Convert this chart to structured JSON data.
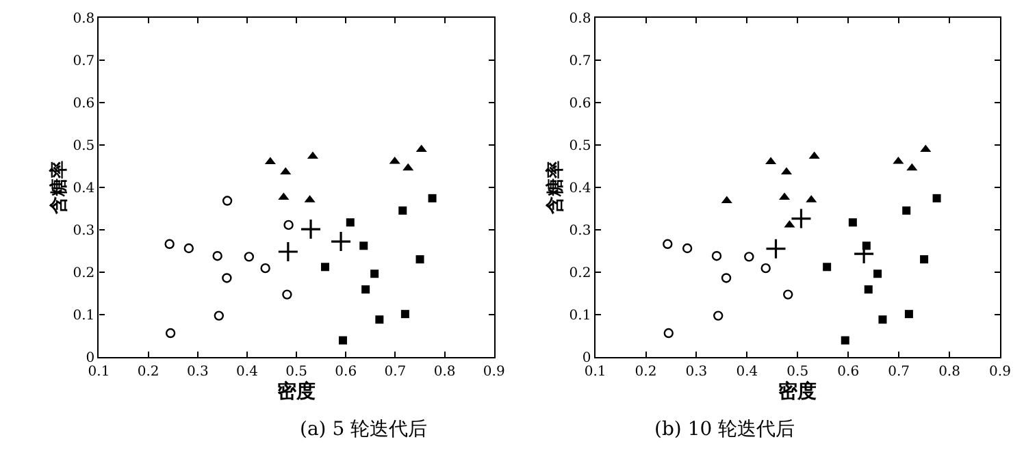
{
  "chart_data": [
    {
      "type": "scatter",
      "title": "(a) 5 轮迭代后",
      "xlabel": "密度",
      "ylabel": "含糖率",
      "xlim": [
        0.1,
        0.9
      ],
      "xticks": [
        0.1,
        0.2,
        0.3,
        0.4,
        0.5,
        0.6,
        0.7,
        0.8,
        0.9
      ],
      "ylim": [
        0,
        0.8
      ],
      "yticks": [
        0,
        0.1,
        0.2,
        0.3,
        0.4,
        0.5,
        0.6,
        0.7,
        0.8
      ],
      "series": [
        {
          "color": "#000000",
          "marker": "circle",
          "x": [
            0.243,
            0.282,
            0.34,
            0.404,
            0.437,
            0.359,
            0.36,
            0.484,
            0.481,
            0.343,
            0.245
          ],
          "values": [
            0.267,
            0.257,
            0.239,
            0.237,
            0.21,
            0.187,
            0.369,
            0.312,
            0.148,
            0.098,
            0.057
          ]
        },
        {
          "color": "#000000",
          "marker": "triangle",
          "x": [
            0.447,
            0.478,
            0.533,
            0.474,
            0.527,
            0.699,
            0.726,
            0.753
          ],
          "values": [
            0.461,
            0.437,
            0.474,
            0.377,
            0.371,
            0.462,
            0.446,
            0.49
          ]
        },
        {
          "color": "#000000",
          "marker": "square",
          "x": [
            0.775,
            0.715,
            0.609,
            0.636,
            0.558,
            0.658,
            0.64,
            0.668,
            0.72,
            0.75,
            0.594
          ],
          "values": [
            0.375,
            0.346,
            0.318,
            0.263,
            0.213,
            0.197,
            0.16,
            0.089,
            0.102,
            0.231,
            0.04
          ]
        },
        {
          "color": "#000000",
          "marker": "cross",
          "x": [
            0.529,
            0.483,
            0.59
          ],
          "values": [
            0.302,
            0.249,
            0.273
          ]
        }
      ]
    },
    {
      "type": "scatter",
      "title": "(b) 10 轮迭代后",
      "xlabel": "密度",
      "ylabel": "含糖率",
      "xlim": [
        0.1,
        0.9
      ],
      "xticks": [
        0.1,
        0.2,
        0.3,
        0.4,
        0.5,
        0.6,
        0.7,
        0.8,
        0.9
      ],
      "ylim": [
        0,
        0.8
      ],
      "yticks": [
        0,
        0.1,
        0.2,
        0.3,
        0.4,
        0.5,
        0.6,
        0.7,
        0.8
      ],
      "series": [
        {
          "color": "#000000",
          "marker": "circle",
          "x": [
            0.243,
            0.282,
            0.34,
            0.404,
            0.437,
            0.359,
            0.481,
            0.343,
            0.245
          ],
          "values": [
            0.267,
            0.257,
            0.239,
            0.237,
            0.21,
            0.187,
            0.148,
            0.098,
            0.057
          ]
        },
        {
          "color": "#000000",
          "marker": "triangle",
          "x": [
            0.447,
            0.478,
            0.533,
            0.474,
            0.527,
            0.699,
            0.726,
            0.753,
            0.36,
            0.484
          ],
          "values": [
            0.461,
            0.437,
            0.474,
            0.377,
            0.371,
            0.462,
            0.446,
            0.49,
            0.369,
            0.312
          ]
        },
        {
          "color": "#000000",
          "marker": "square",
          "x": [
            0.775,
            0.715,
            0.609,
            0.636,
            0.558,
            0.658,
            0.64,
            0.668,
            0.72,
            0.75,
            0.594
          ],
          "values": [
            0.375,
            0.346,
            0.318,
            0.263,
            0.213,
            0.197,
            0.16,
            0.089,
            0.102,
            0.231,
            0.04
          ]
        },
        {
          "color": "#000000",
          "marker": "cross",
          "x": [
            0.457,
            0.507,
            0.631
          ],
          "values": [
            0.256,
            0.327,
            0.244
          ]
        }
      ]
    }
  ]
}
